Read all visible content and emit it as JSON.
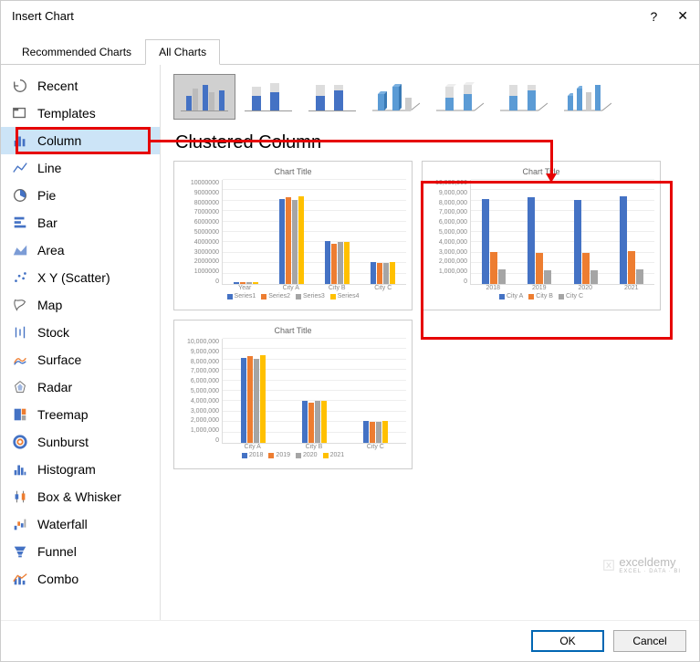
{
  "dialog": {
    "title": "Insert Chart",
    "help_label": "?",
    "close_label": "✕"
  },
  "tabs": {
    "recommended": "Recommended Charts",
    "all": "All Charts"
  },
  "sidebar": {
    "items": [
      {
        "label": "Recent",
        "icon": "recent"
      },
      {
        "label": "Templates",
        "icon": "templates"
      },
      {
        "label": "Column",
        "icon": "column",
        "selected": true
      },
      {
        "label": "Line",
        "icon": "line"
      },
      {
        "label": "Pie",
        "icon": "pie"
      },
      {
        "label": "Bar",
        "icon": "bar"
      },
      {
        "label": "Area",
        "icon": "area"
      },
      {
        "label": "X Y (Scatter)",
        "icon": "scatter"
      },
      {
        "label": "Map",
        "icon": "map"
      },
      {
        "label": "Stock",
        "icon": "stock"
      },
      {
        "label": "Surface",
        "icon": "surface"
      },
      {
        "label": "Radar",
        "icon": "radar"
      },
      {
        "label": "Treemap",
        "icon": "treemap"
      },
      {
        "label": "Sunburst",
        "icon": "sunburst"
      },
      {
        "label": "Histogram",
        "icon": "histogram"
      },
      {
        "label": "Box & Whisker",
        "icon": "box"
      },
      {
        "label": "Waterfall",
        "icon": "waterfall"
      },
      {
        "label": "Funnel",
        "icon": "funnel"
      },
      {
        "label": "Combo",
        "icon": "combo"
      }
    ]
  },
  "subtypes": {
    "selected": 0,
    "count": 7
  },
  "main": {
    "heading": "Clustered Column"
  },
  "colors": {
    "blue": "#4472c4",
    "orange": "#ed7d31",
    "gray": "#a5a5a5",
    "yellow": "#ffc000",
    "grid": "#eeeeee",
    "axis": "#dddddd",
    "accent3d": "#5b9bd5"
  },
  "preview_shared": {
    "title": "Chart Title",
    "ylim": [
      0,
      10000000
    ],
    "yticks": [
      "0",
      "1000000",
      "2000000",
      "3000000",
      "4000000",
      "5000000",
      "6000000",
      "7000000",
      "8000000",
      "9000000",
      "10000000"
    ]
  },
  "preview1": {
    "categories": [
      "Year",
      "City A",
      "City B",
      "City C"
    ],
    "series": [
      "Series1",
      "Series2",
      "Series3",
      "Series4"
    ],
    "series_colors": [
      "#4472c4",
      "#ed7d31",
      "#a5a5a5",
      "#ffc000"
    ],
    "values": [
      [
        2018,
        2019,
        2020,
        2021
      ],
      [
        8200000,
        8300000,
        8150000,
        8400000
      ],
      [
        4100000,
        3900000,
        4000000,
        4050000
      ],
      [
        2100000,
        2000000,
        2050000,
        2150000
      ]
    ],
    "heights_pct": [
      [
        2,
        2,
        2,
        2
      ],
      [
        82,
        83,
        81,
        84
      ],
      [
        41,
        39,
        40,
        40
      ],
      [
        21,
        20,
        20,
        21
      ]
    ]
  },
  "preview2": {
    "categories": [
      "2018",
      "2019",
      "2020",
      "2021"
    ],
    "series": [
      "City A",
      "City B",
      "City C"
    ],
    "series_colors": [
      "#4472c4",
      "#ed7d31",
      "#a5a5a5"
    ],
    "yticks": [
      "0",
      "1,000,000",
      "2,000,000",
      "3,000,000",
      "4,000,000",
      "5,000,000",
      "6,000,000",
      "7,000,000",
      "8,000,000",
      "9,000,000",
      "10,000,000"
    ],
    "values": [
      [
        8200000,
        8300000,
        8150000,
        8400000
      ],
      [
        3100000,
        3050000,
        3000000,
        3200000
      ],
      [
        1400000,
        1300000,
        1350000,
        1450000
      ]
    ],
    "heights_pct": [
      [
        82,
        83,
        81,
        84
      ],
      [
        31,
        30,
        30,
        32
      ],
      [
        14,
        13,
        13,
        14
      ]
    ]
  },
  "preview3": {
    "categories": [
      "City A",
      "City B",
      "City C"
    ],
    "series": [
      "2018",
      "2019",
      "2020",
      "2021"
    ],
    "series_colors": [
      "#4472c4",
      "#ed7d31",
      "#a5a5a5",
      "#ffc000"
    ],
    "yticks": [
      "0",
      "1,000,000",
      "2,000,000",
      "3,000,000",
      "4,000,000",
      "5,000,000",
      "6,000,000",
      "7,000,000",
      "8,000,000",
      "9,000,000",
      "10,000,000"
    ],
    "values": [
      [
        8200000,
        8300000,
        8150000,
        8400000
      ],
      [
        4000000,
        3900000,
        4000000,
        4050000
      ],
      [
        2100000,
        2000000,
        2050000,
        2150000
      ]
    ],
    "heights_pct": [
      [
        82,
        83,
        81,
        84
      ],
      [
        40,
        39,
        40,
        40
      ],
      [
        21,
        20,
        20,
        21
      ]
    ]
  },
  "footer": {
    "ok": "OK",
    "cancel": "Cancel"
  },
  "watermark": {
    "text": "exceldemy",
    "sub": "EXCEL · DATA · BI"
  }
}
